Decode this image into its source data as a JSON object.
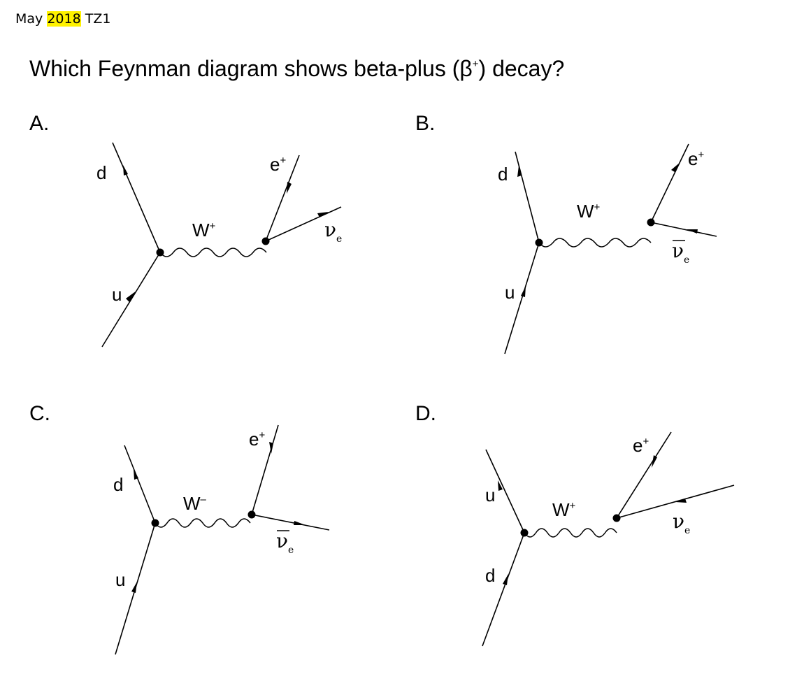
{
  "header": {
    "month": "May",
    "year": "2018",
    "zone": "TZ1",
    "highlight_color": "#fff200"
  },
  "question": {
    "before": "Which Feynman diagram shows beta-plus (β",
    "sup": "+",
    "after": ") decay?"
  },
  "options": [
    {
      "letter": "A.",
      "lower_quark": "u",
      "upper_quark": "d",
      "boson": "W",
      "boson_charge": "+",
      "lepton": "e",
      "lepton_charge": "+",
      "neutrino": "ν",
      "neutrino_bar": false,
      "neutrino_sub": "e"
    },
    {
      "letter": "B.",
      "lower_quark": "u",
      "upper_quark": "d",
      "boson": "W",
      "boson_charge": "+",
      "lepton": "e",
      "lepton_charge": "+",
      "neutrino": "ν",
      "neutrino_bar": true,
      "neutrino_sub": "e"
    },
    {
      "letter": "C.",
      "lower_quark": "u",
      "upper_quark": "d",
      "boson": "W",
      "boson_charge": "–",
      "lepton": "e",
      "lepton_charge": "+",
      "neutrino": "ν",
      "neutrino_bar": true,
      "neutrino_sub": "e"
    },
    {
      "letter": "D.",
      "lower_quark": "d",
      "upper_quark": "u",
      "boson": "W",
      "boson_charge": "+",
      "lepton": "e",
      "lepton_charge": "+",
      "neutrino": "ν",
      "neutrino_bar": false,
      "neutrino_sub": "e"
    }
  ]
}
